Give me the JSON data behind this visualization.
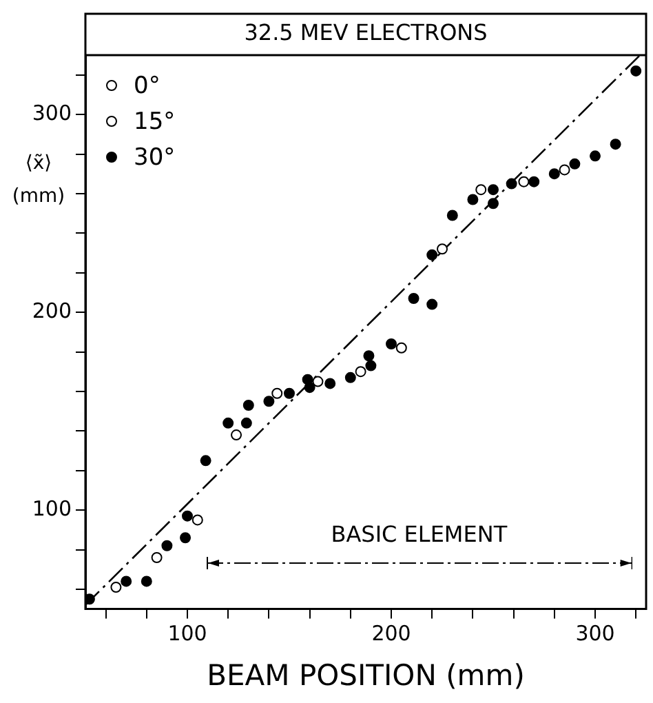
{
  "chart_data": {
    "type": "scatter",
    "title": "32.5 MEV ELECTRONS",
    "xlabel": "BEAM POSITION (mm)",
    "ylabel": "⟨x̃⟩ (mm)",
    "xlim": [
      50,
      325
    ],
    "ylim": [
      50,
      330
    ],
    "xticks": [
      {
        "value": 60,
        "label": null
      },
      {
        "value": 80,
        "label": null
      },
      100,
      {
        "value": 120,
        "label": null
      },
      {
        "value": 140,
        "label": null
      },
      {
        "value": 160,
        "label": null
      },
      {
        "value": 180,
        "label": null
      },
      200,
      {
        "value": 220,
        "label": null
      },
      {
        "value": 240,
        "label": null
      },
      {
        "value": 260,
        "label": null
      },
      {
        "value": 280,
        "label": null
      },
      300,
      {
        "value": 320,
        "label": null
      }
    ],
    "yticks": [
      {
        "value": 60,
        "label": null
      },
      {
        "value": 80,
        "label": null
      },
      100,
      {
        "value": 120,
        "label": null
      },
      {
        "value": 140,
        "label": null
      },
      {
        "value": 160,
        "label": null
      },
      {
        "value": 180,
        "label": null
      },
      200,
      {
        "value": 220,
        "label": null
      },
      {
        "value": 240,
        "label": null
      },
      {
        "value": 260,
        "label": null
      },
      {
        "value": 280,
        "label": null
      },
      300,
      {
        "value": 320,
        "label": null
      }
    ],
    "grid": false,
    "legend": "top left",
    "marker": "circle",
    "annotations": [
      "BASIC ELEMENT"
    ],
    "series": [
      {
        "name": "0°",
        "color": "#ffffff",
        "x": [
          65,
          105,
          144,
          185,
          225,
          265,
          285
        ],
        "values": [
          61,
          95,
          159,
          170,
          232,
          266,
          272
        ]
      },
      {
        "name": "15°",
        "color": "#ffffff",
        "x": [
          85,
          124,
          164,
          205,
          244
        ],
        "values": [
          76,
          138,
          165,
          182,
          262
        ]
      },
      {
        "name": "30°",
        "color": "#000000",
        "x": [
          52,
          70,
          80,
          90,
          99,
          100,
          109,
          120,
          129,
          130,
          140,
          150,
          159,
          160,
          170,
          180,
          189,
          190,
          200,
          211,
          220,
          220,
          230,
          240,
          250,
          250,
          259,
          270,
          280,
          290,
          300,
          310,
          320
        ],
        "values": [
          55,
          64,
          64,
          82,
          86,
          97,
          125,
          144,
          144,
          153,
          155,
          159,
          166,
          162,
          164,
          167,
          178,
          173,
          184,
          207,
          204,
          229,
          249,
          257,
          262,
          255,
          265,
          266,
          270,
          275,
          279,
          285,
          322
        ]
      },
      {
        "type": "line",
        "color": "#000000",
        "line_style": "dashed",
        "marker": "none",
        "x": [
          50,
          322
        ],
        "values": [
          52,
          330
        ]
      }
    ]
  }
}
